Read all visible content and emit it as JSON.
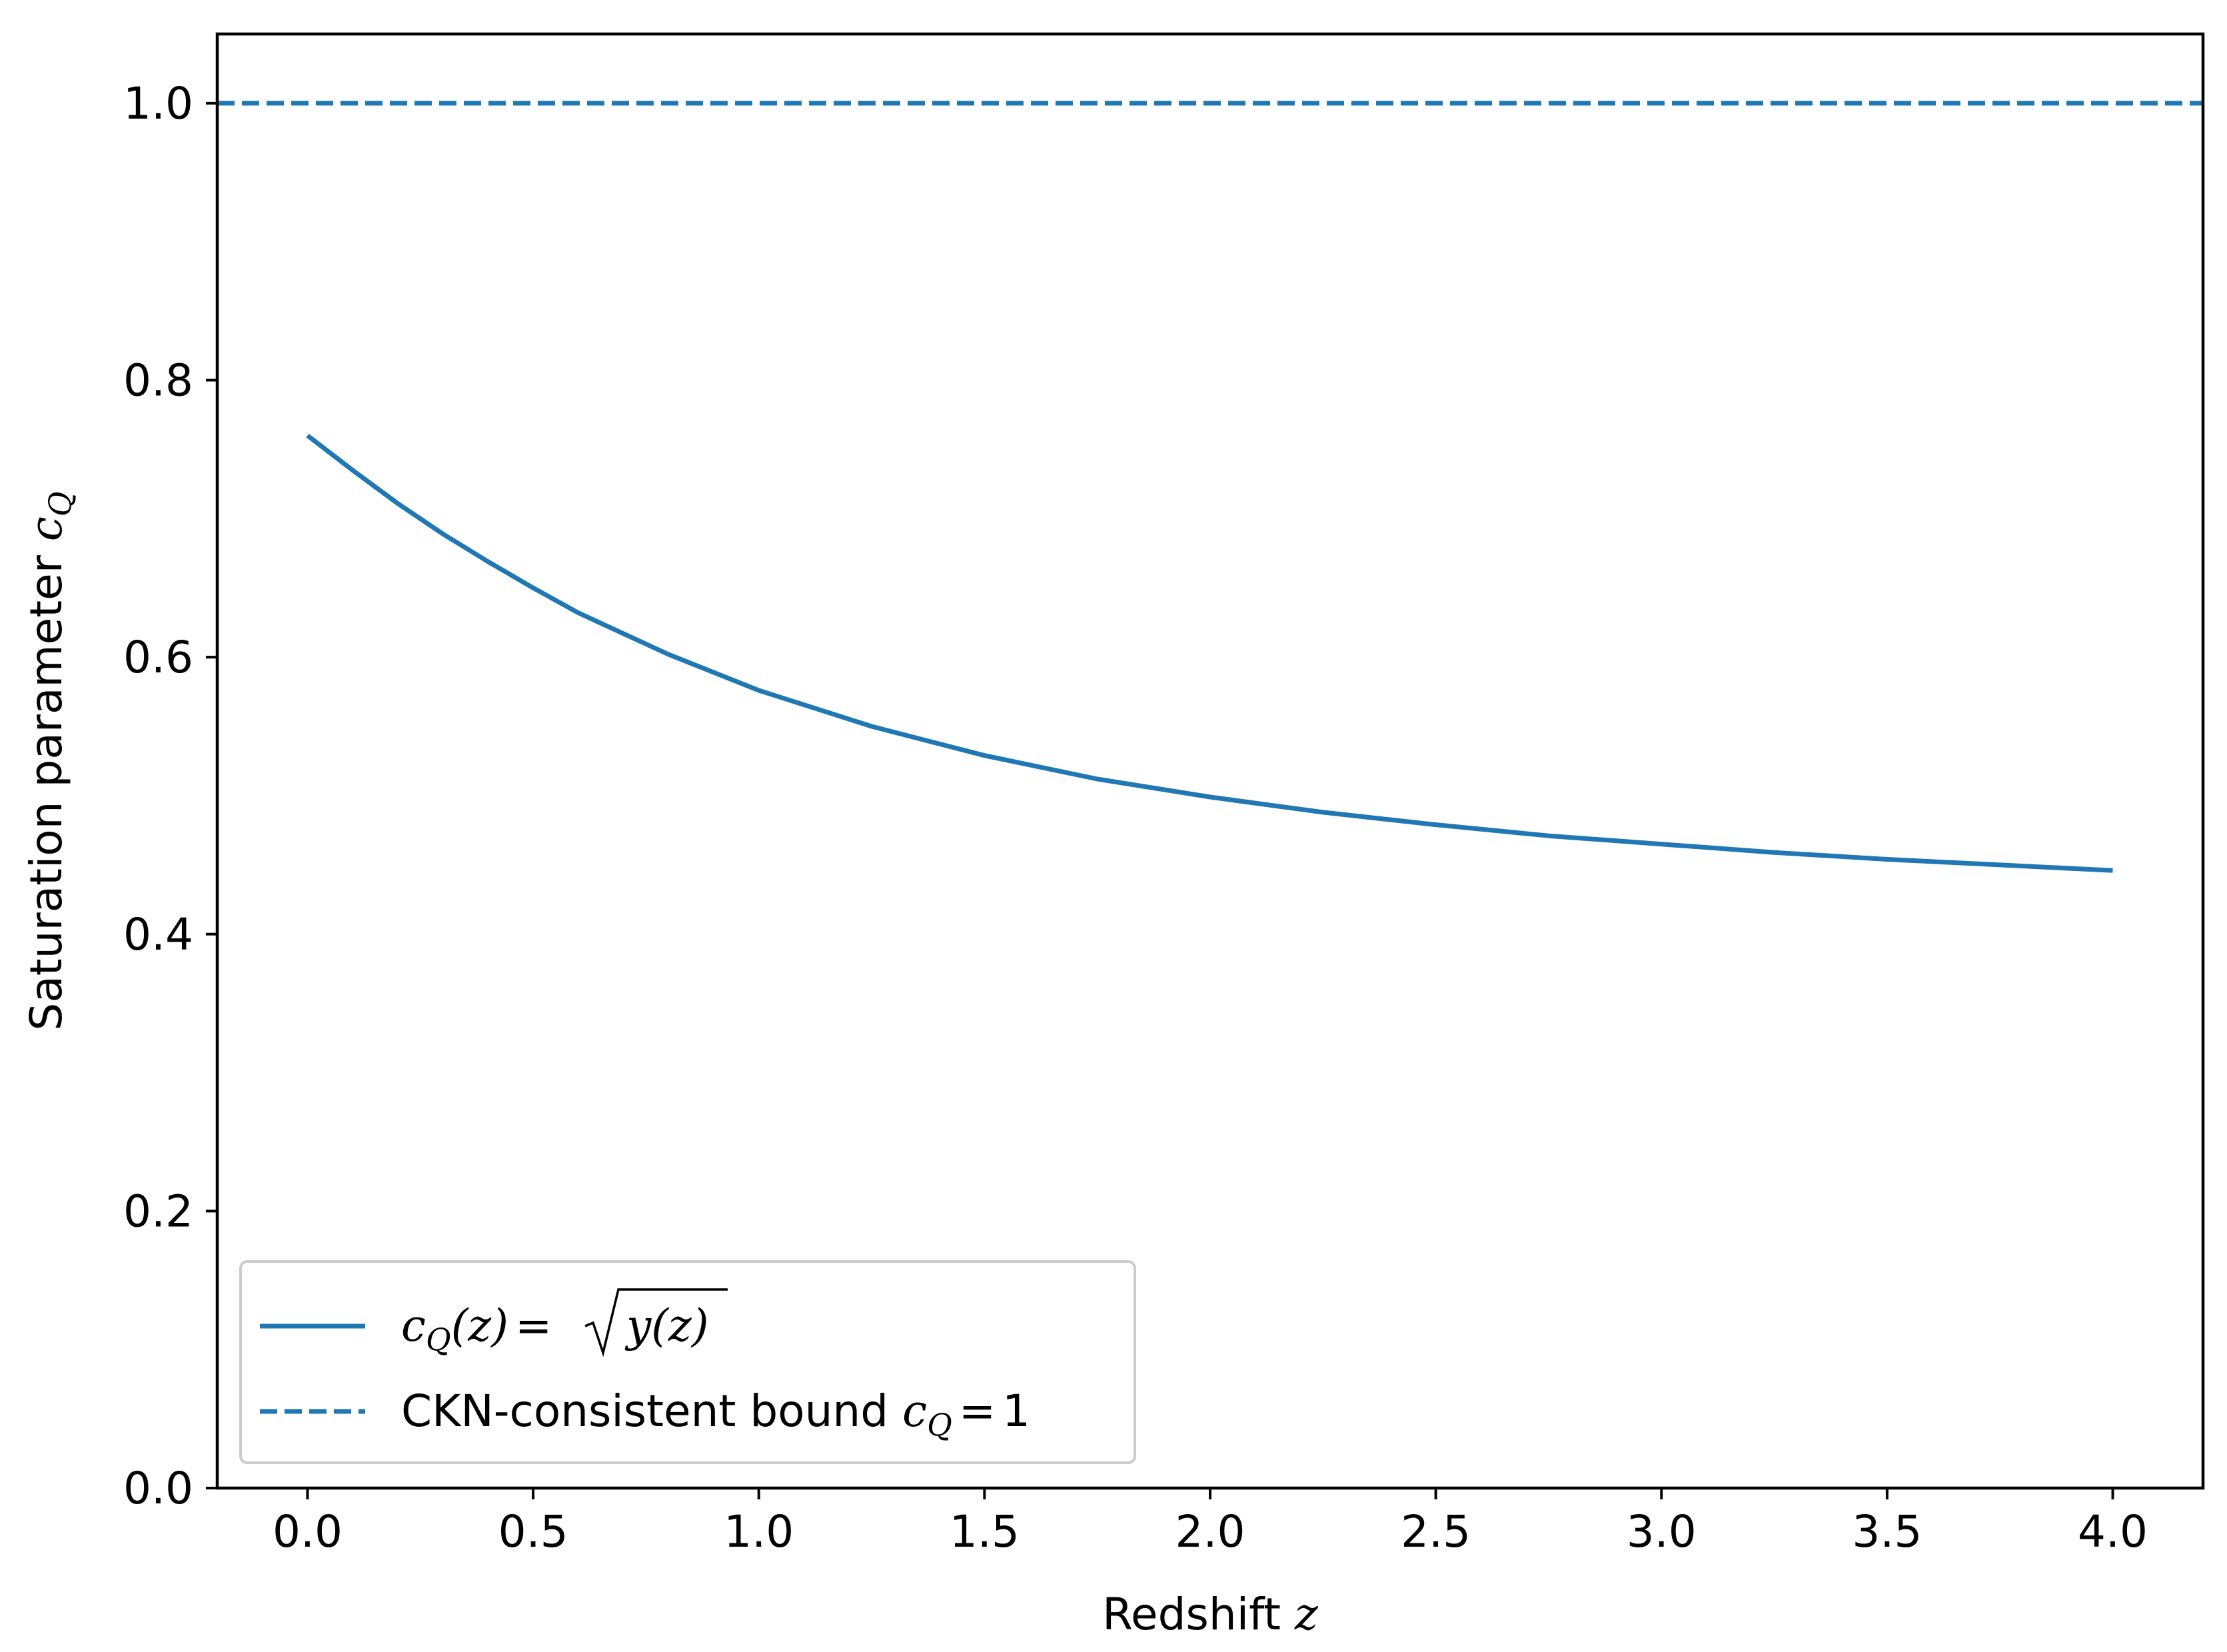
{
  "chart_data": {
    "type": "line",
    "xlabel": "Redshift",
    "xlabel_var": "z",
    "ylabel": "Saturation parameter",
    "ylabel_var": "c",
    "ylabel_sub": "Q",
    "xlim": [
      -0.2,
      4.2
    ],
    "ylim": [
      0.0,
      1.05
    ],
    "x_ticks": [
      0.0,
      0.5,
      1.0,
      1.5,
      2.0,
      2.5,
      3.0,
      3.5,
      4.0
    ],
    "x_tick_labels": [
      "0.0",
      "0.5",
      "1.0",
      "1.5",
      "2.0",
      "2.5",
      "3.0",
      "3.5",
      "4.0"
    ],
    "y_ticks": [
      0.0,
      0.2,
      0.4,
      0.6,
      0.8,
      1.0
    ],
    "y_tick_labels": [
      "0.0",
      "0.2",
      "0.4",
      "0.6",
      "0.8",
      "1.0"
    ],
    "grid": false,
    "legend_position": "lower-left",
    "series": [
      {
        "name": "c_Q(z) = √y(z)",
        "style": "solid",
        "color": "#1f77b4",
        "x": [
          0.0,
          0.1,
          0.2,
          0.3,
          0.4,
          0.5,
          0.6,
          0.7,
          0.8,
          0.9,
          1.0,
          1.25,
          1.5,
          1.75,
          2.0,
          2.25,
          2.5,
          2.75,
          3.0,
          3.25,
          3.5,
          3.75,
          4.0
        ],
        "y": [
          0.76,
          0.735,
          0.711,
          0.689,
          0.669,
          0.65,
          0.632,
          0.617,
          0.602,
          0.589,
          0.576,
          0.55,
          0.529,
          0.512,
          0.499,
          0.488,
          0.479,
          0.471,
          0.465,
          0.459,
          0.454,
          0.45,
          0.446
        ]
      },
      {
        "name": "CKN-consistent bound c_Q = 1",
        "style": "dashed",
        "color": "#1f77b4",
        "x": [
          -0.2,
          4.2
        ],
        "y": [
          1.0,
          1.0
        ]
      }
    ]
  },
  "legend": {
    "entry1": {
      "var": "c",
      "sub": "Q",
      "arg": "(z)",
      "eq": "=",
      "root_var": "y",
      "root_arg": "(z)"
    },
    "entry2": {
      "text": "CKN-consistent bound",
      "var": "c",
      "sub": "Q",
      "eq": "=",
      "value": "1"
    }
  }
}
